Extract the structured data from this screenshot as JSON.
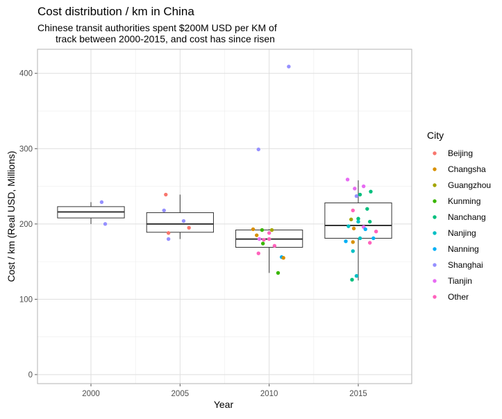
{
  "chart_data": {
    "type": "boxplot-jitter",
    "title": "Cost distribution / km in China",
    "subtitle_lines": [
      "Chinese transit authorities spent $200M USD per KM of",
      "track between 2000-2015, and cost has since risen"
    ],
    "xlabel": "Year",
    "ylabel": "Cost / km (Real USD, Millions)",
    "categories": [
      "2000",
      "2005",
      "2010",
      "2015"
    ],
    "y_ticks": [
      0,
      100,
      200,
      300,
      400
    ],
    "ylim": [
      -12,
      432
    ],
    "grid": true,
    "legend": {
      "title": "City",
      "position": "right",
      "entries": [
        {
          "name": "Beijing",
          "color": "#F8766D"
        },
        {
          "name": "Changsha",
          "color": "#D89000"
        },
        {
          "name": "Guangzhou",
          "color": "#A3A500"
        },
        {
          "name": "Kunming",
          "color": "#39B600"
        },
        {
          "name": "Nanchang",
          "color": "#00BF7D"
        },
        {
          "name": "Nanjing",
          "color": "#00BFC4"
        },
        {
          "name": "Nanning",
          "color": "#00B0F6"
        },
        {
          "name": "Shanghai",
          "color": "#9590FF"
        },
        {
          "name": "Tianjin",
          "color": "#E76BF3"
        },
        {
          "name": "Other",
          "color": "#FF62BC"
        }
      ]
    },
    "boxes": [
      {
        "category": "2000",
        "whisker_low": 200,
        "q1": 208,
        "median": 216,
        "q3": 223,
        "whisker_high": 229
      },
      {
        "category": "2005",
        "whisker_low": 180,
        "q1": 189,
        "median": 200,
        "q3": 215,
        "whisker_high": 239
      },
      {
        "category": "2010",
        "whisker_low": 135,
        "q1": 169,
        "median": 180,
        "q3": 192,
        "whisker_high": 193
      },
      {
        "category": "2015",
        "whisker_low": 125,
        "q1": 181,
        "median": 198,
        "q3": 228,
        "whisker_high": 258
      }
    ],
    "points": [
      {
        "category": "2000",
        "jitter": 0.12,
        "y": 229,
        "city": "Shanghai"
      },
      {
        "category": "2000",
        "jitter": 0.16,
        "y": 200,
        "city": "Shanghai"
      },
      {
        "category": "2005",
        "jitter": -0.16,
        "y": 239,
        "city": "Beijing"
      },
      {
        "category": "2005",
        "jitter": -0.18,
        "y": 218,
        "city": "Shanghai"
      },
      {
        "category": "2005",
        "jitter": -0.13,
        "y": 188,
        "city": "Beijing"
      },
      {
        "category": "2005",
        "jitter": -0.13,
        "y": 180,
        "city": "Shanghai"
      },
      {
        "category": "2005",
        "jitter": 0.04,
        "y": 204,
        "city": "Shanghai"
      },
      {
        "category": "2005",
        "jitter": 0.1,
        "y": 195,
        "city": "Beijing"
      },
      {
        "category": "2010",
        "jitter": 0.22,
        "y": 409,
        "city": "Shanghai"
      },
      {
        "category": "2010",
        "jitter": -0.12,
        "y": 299,
        "city": "Shanghai"
      },
      {
        "category": "2010",
        "jitter": -0.18,
        "y": 193,
        "city": "Changsha"
      },
      {
        "category": "2010",
        "jitter": -0.08,
        "y": 192,
        "city": "Kunming"
      },
      {
        "category": "2010",
        "jitter": 0.03,
        "y": 192,
        "city": "Guangzhou"
      },
      {
        "category": "2010",
        "jitter": -0.14,
        "y": 185,
        "city": "Changsha"
      },
      {
        "category": "2010",
        "jitter": 0.0,
        "y": 188,
        "city": "Other"
      },
      {
        "category": "2010",
        "jitter": -0.11,
        "y": 180,
        "city": "Tianjin"
      },
      {
        "category": "2010",
        "jitter": -0.06,
        "y": 179,
        "city": "Other"
      },
      {
        "category": "2010",
        "jitter": 0.0,
        "y": 180,
        "city": "Other"
      },
      {
        "category": "2010",
        "jitter": -0.12,
        "y": 161,
        "city": "Other"
      },
      {
        "category": "2010",
        "jitter": -0.07,
        "y": 174,
        "city": "Kunming"
      },
      {
        "category": "2010",
        "jitter": 0.06,
        "y": 171,
        "city": "Other"
      },
      {
        "category": "2010",
        "jitter": 0.14,
        "y": 156,
        "city": "Nanning"
      },
      {
        "category": "2010",
        "jitter": 0.16,
        "y": 155,
        "city": "Changsha"
      },
      {
        "category": "2010",
        "jitter": 0.1,
        "y": 135,
        "city": "Kunming"
      },
      {
        "category": "2015",
        "jitter": -0.12,
        "y": 259,
        "city": "Tianjin"
      },
      {
        "category": "2015",
        "jitter": -0.04,
        "y": 247,
        "city": "Tianjin"
      },
      {
        "category": "2015",
        "jitter": 0.06,
        "y": 250,
        "city": "Tianjin"
      },
      {
        "category": "2015",
        "jitter": 0.14,
        "y": 243,
        "city": "Nanchang"
      },
      {
        "category": "2015",
        "jitter": -0.02,
        "y": 237,
        "city": "Shanghai"
      },
      {
        "category": "2015",
        "jitter": 0.02,
        "y": 239,
        "city": "Nanchang"
      },
      {
        "category": "2015",
        "jitter": 0.1,
        "y": 220,
        "city": "Nanchang"
      },
      {
        "category": "2015",
        "jitter": -0.06,
        "y": 218,
        "city": "Other"
      },
      {
        "category": "2015",
        "jitter": -0.08,
        "y": 206,
        "city": "Guangzhou"
      },
      {
        "category": "2015",
        "jitter": 0.0,
        "y": 207,
        "city": "Nanchang"
      },
      {
        "category": "2015",
        "jitter": 0.0,
        "y": 203,
        "city": "Nanjing"
      },
      {
        "category": "2015",
        "jitter": 0.13,
        "y": 203,
        "city": "Nanchang"
      },
      {
        "category": "2015",
        "jitter": -0.11,
        "y": 197,
        "city": "Nanjing"
      },
      {
        "category": "2015",
        "jitter": -0.05,
        "y": 194,
        "city": "Changsha"
      },
      {
        "category": "2015",
        "jitter": 0.06,
        "y": 196,
        "city": "Tianjin"
      },
      {
        "category": "2015",
        "jitter": 0.08,
        "y": 193,
        "city": "Nanning"
      },
      {
        "category": "2015",
        "jitter": 0.2,
        "y": 190,
        "city": "Other"
      },
      {
        "category": "2015",
        "jitter": 0.17,
        "y": 181,
        "city": "Nanning"
      },
      {
        "category": "2015",
        "jitter": 0.02,
        "y": 181,
        "city": "Nanjing"
      },
      {
        "category": "2015",
        "jitter": -0.14,
        "y": 177,
        "city": "Nanning"
      },
      {
        "category": "2015",
        "jitter": -0.06,
        "y": 176,
        "city": "Changsha"
      },
      {
        "category": "2015",
        "jitter": 0.13,
        "y": 175,
        "city": "Other"
      },
      {
        "category": "2015",
        "jitter": -0.06,
        "y": 164,
        "city": "Nanjing"
      },
      {
        "category": "2015",
        "jitter": -0.02,
        "y": 131,
        "city": "Nanjing"
      },
      {
        "category": "2015",
        "jitter": -0.07,
        "y": 126,
        "city": "Nanchang"
      }
    ]
  }
}
